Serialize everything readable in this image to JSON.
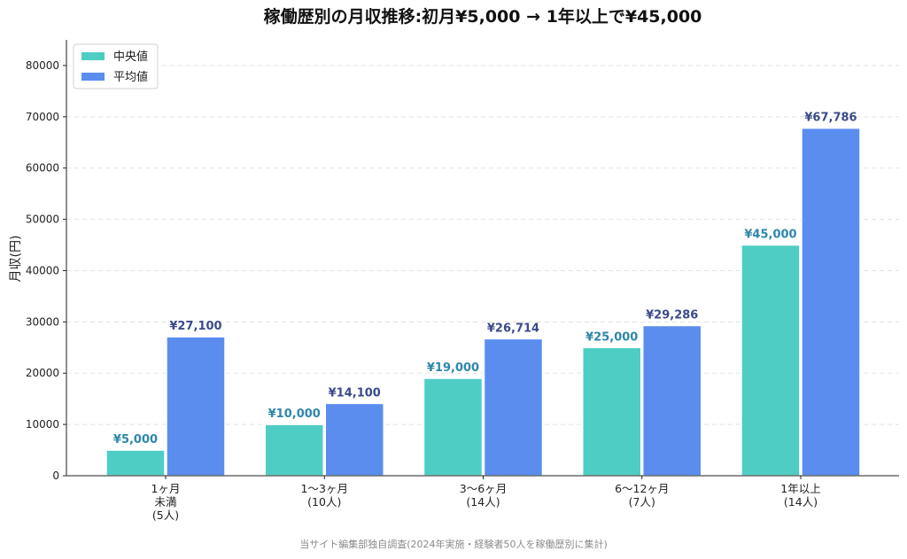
{
  "chart_data": {
    "type": "bar",
    "title": "稼働歴別の月収推移:初月¥5,000 → 1年以上で¥45,000",
    "ylabel": "月収(円)",
    "xlabel": "",
    "ylim": [
      0,
      85000
    ],
    "yticks": [
      0,
      10000,
      20000,
      30000,
      40000,
      50000,
      60000,
      70000,
      80000
    ],
    "grid": "horizontal dashed",
    "legend_position": "top-left",
    "categories": [
      [
        "1ヶ月",
        "未満",
        "(5人)"
      ],
      [
        "1〜3ヶ月",
        "(10人)"
      ],
      [
        "3〜6ヶ月",
        "(14人)"
      ],
      [
        "6〜12ヶ月",
        "(7人)"
      ],
      [
        "1年以上",
        "(14人)"
      ]
    ],
    "series": [
      {
        "name": "中央値",
        "color": "#4ecdc4",
        "label_color": "#2e86ab",
        "values": [
          5000,
          10000,
          19000,
          25000,
          45000
        ],
        "labels": [
          "¥5,000",
          "¥10,000",
          "¥19,000",
          "¥25,000",
          "¥45,000"
        ]
      },
      {
        "name": "平均値",
        "color": "#5b8def",
        "label_color": "#3b4a8a",
        "values": [
          27100,
          14100,
          26714,
          29286,
          67786
        ],
        "labels": [
          "¥27,100",
          "¥14,100",
          "¥26,714",
          "¥29,286",
          "¥67,786"
        ]
      }
    ],
    "source_note": "当サイト編集部独自調査(2024年実施・経験者50人を稼働歴別に集計)"
  }
}
